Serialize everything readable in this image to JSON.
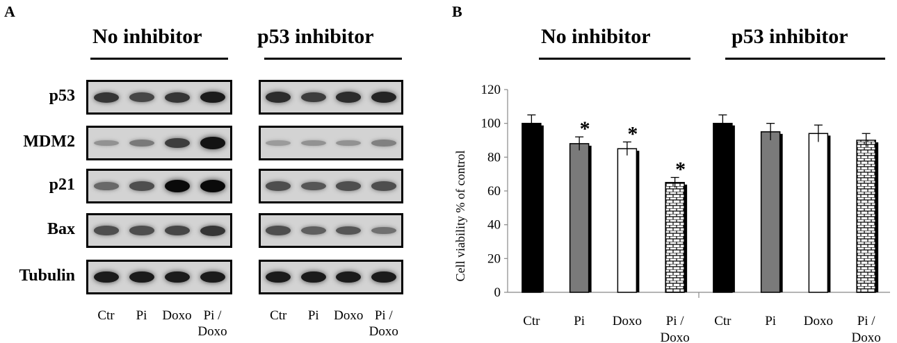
{
  "panel_a": {
    "letter": "A",
    "groups": [
      {
        "title": "No inhibitor"
      },
      {
        "title": "p53 inhibitor"
      }
    ],
    "row_labels": [
      "p53",
      "MDM2",
      "p21",
      "Bax",
      "Tubulin"
    ],
    "lanes": [
      {
        "line1": "Ctr",
        "line2": ""
      },
      {
        "line1": "Pi",
        "line2": ""
      },
      {
        "line1": "Doxo",
        "line2": ""
      },
      {
        "line1": "Pi /",
        "line2": "Doxo"
      }
    ],
    "band_intensity": {
      "no_inhibitor": [
        [
          0.75,
          0.65,
          0.75,
          0.9
        ],
        [
          0.2,
          0.35,
          0.7,
          0.95
        ],
        [
          0.45,
          0.6,
          1.0,
          1.0
        ],
        [
          0.6,
          0.6,
          0.65,
          0.75
        ],
        [
          0.9,
          0.9,
          0.9,
          0.9
        ]
      ],
      "p53_inhibitor": [
        [
          0.8,
          0.7,
          0.8,
          0.85
        ],
        [
          0.15,
          0.2,
          0.2,
          0.3
        ],
        [
          0.6,
          0.55,
          0.6,
          0.6
        ],
        [
          0.6,
          0.5,
          0.55,
          0.4
        ],
        [
          0.9,
          0.9,
          0.9,
          0.9
        ]
      ]
    }
  },
  "panel_b": {
    "letter": "B",
    "groups": [
      {
        "title": "No inhibitor"
      },
      {
        "title": "p53 inhibitor"
      }
    ]
  },
  "chart_data": {
    "type": "bar",
    "ylabel": "Cell viability % of control",
    "ylim": [
      0,
      120
    ],
    "yticks": [
      0,
      20,
      40,
      60,
      80,
      100,
      120
    ],
    "groups": [
      "No inhibitor",
      "p53 inhibitor"
    ],
    "categories": [
      {
        "line1": "Ctr",
        "line2": ""
      },
      {
        "line1": "Pi",
        "line2": ""
      },
      {
        "line1": "Doxo",
        "line2": ""
      },
      {
        "line1": "Pi /",
        "line2": "Doxo"
      }
    ],
    "series": [
      {
        "group": "No inhibitor",
        "values": [
          100,
          88,
          85,
          65
        ],
        "errors": [
          5,
          4,
          4,
          3
        ],
        "significant": [
          false,
          true,
          true,
          true
        ]
      },
      {
        "group": "p53 inhibitor",
        "values": [
          100,
          95,
          94,
          90
        ],
        "errors": [
          5,
          5,
          5,
          4
        ],
        "significant": [
          false,
          false,
          false,
          false
        ]
      }
    ],
    "fills": [
      "#000000",
      "#7a7a7a",
      "#ffffff",
      "brick-pattern"
    ],
    "significance_marker": "*",
    "grid": false
  }
}
